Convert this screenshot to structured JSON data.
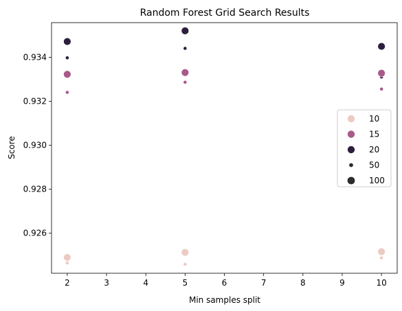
{
  "chart_data": {
    "type": "scatter",
    "title": "Random Forest Grid Search Results",
    "xlabel": "Min samples split",
    "ylabel": "Score",
    "xlim": [
      1.6,
      10.4
    ],
    "ylim": [
      0.92418,
      0.93558
    ],
    "xticks": [
      2,
      3,
      4,
      5,
      6,
      7,
      8,
      9,
      10
    ],
    "yticks": [
      0.926,
      0.928,
      0.93,
      0.932,
      0.934
    ],
    "ytick_labels": [
      "0.926",
      "0.928",
      "0.930",
      "0.932",
      "0.934"
    ],
    "grid": false,
    "hue_legend": [
      {
        "label": "10",
        "color": "#eccbc2"
      },
      {
        "label": "15",
        "color": "#a9598a"
      },
      {
        "label": "20",
        "color": "#2d1e3e"
      }
    ],
    "size_legend": [
      {
        "label": "50",
        "color": "#2d2d2d",
        "size": "small"
      },
      {
        "label": "100",
        "color": "#2d2d2d",
        "size": "large"
      }
    ],
    "legend_position": "center-right",
    "points": [
      {
        "x": 2,
        "y": 0.93472,
        "hue": "20",
        "size": "100"
      },
      {
        "x": 2,
        "y": 0.93398,
        "hue": "20",
        "size": "50"
      },
      {
        "x": 2,
        "y": 0.93323,
        "hue": "15",
        "size": "100"
      },
      {
        "x": 2,
        "y": 0.93241,
        "hue": "15",
        "size": "50"
      },
      {
        "x": 2,
        "y": 0.9249,
        "hue": "10",
        "size": "100"
      },
      {
        "x": 2,
        "y": 0.92465,
        "hue": "10",
        "size": "50"
      },
      {
        "x": 5,
        "y": 0.93521,
        "hue": "20",
        "size": "100"
      },
      {
        "x": 5,
        "y": 0.93441,
        "hue": "20",
        "size": "50"
      },
      {
        "x": 5,
        "y": 0.93331,
        "hue": "15",
        "size": "100"
      },
      {
        "x": 5,
        "y": 0.93287,
        "hue": "15",
        "size": "50"
      },
      {
        "x": 5,
        "y": 0.92513,
        "hue": "10",
        "size": "100"
      },
      {
        "x": 5,
        "y": 0.92459,
        "hue": "10",
        "size": "50"
      },
      {
        "x": 10,
        "y": 0.9345,
        "hue": "20",
        "size": "100"
      },
      {
        "x": 10,
        "y": 0.93311,
        "hue": "20",
        "size": "50"
      },
      {
        "x": 10,
        "y": 0.93328,
        "hue": "15",
        "size": "100"
      },
      {
        "x": 10,
        "y": 0.93256,
        "hue": "15",
        "size": "50"
      },
      {
        "x": 10,
        "y": 0.92516,
        "hue": "10",
        "size": "100"
      },
      {
        "x": 10,
        "y": 0.92488,
        "hue": "10",
        "size": "50"
      }
    ]
  }
}
